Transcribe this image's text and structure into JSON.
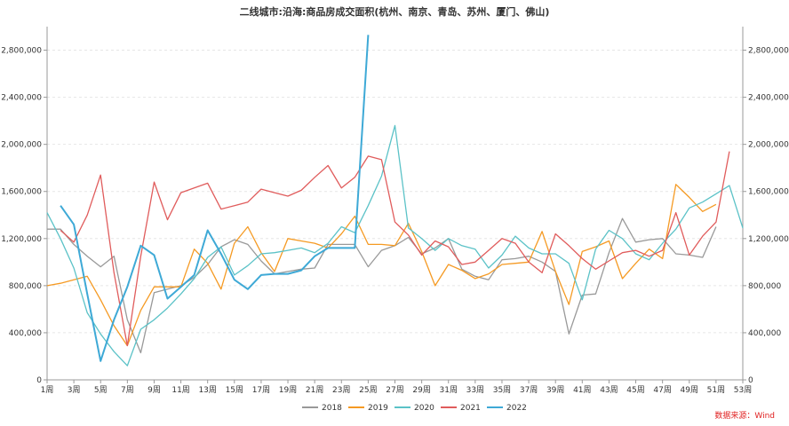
{
  "chart_data": {
    "type": "line",
    "title": "二线城市:沿海:商品房成交面积(杭州、南京、青岛、苏州、厦门、佛山)",
    "source": "数据来源：Wind",
    "x_tick_labels": [
      "1周",
      "3周",
      "5周",
      "7周",
      "9周",
      "11周",
      "13周",
      "15周",
      "17周",
      "19周",
      "21周",
      "23周",
      "25周",
      "27周",
      "29周",
      "31周",
      "33周",
      "35周",
      "37周",
      "39周",
      "41周",
      "43周",
      "45周",
      "47周",
      "49周",
      "51周",
      "53周"
    ],
    "y_tick_labels": [
      "0",
      "400,000",
      "800,000",
      "1,200,000",
      "1,600,000",
      "2,000,000",
      "2,400,000",
      "2,800,000"
    ],
    "x": [
      1,
      2,
      3,
      4,
      5,
      6,
      7,
      8,
      9,
      10,
      11,
      12,
      13,
      14,
      15,
      16,
      17,
      18,
      19,
      20,
      21,
      22,
      23,
      24,
      25,
      26,
      27,
      28,
      29,
      30,
      31,
      32,
      33,
      34,
      35,
      36,
      37,
      38,
      39,
      40,
      41,
      42,
      43,
      44,
      45,
      46,
      47,
      48,
      49,
      50,
      51,
      52,
      53
    ],
    "ylim": [
      0,
      3000000
    ],
    "legend_position": "bottom",
    "series": [
      {
        "name": "2018",
        "color": "#999999",
        "values": [
          1280000,
          1280000,
          1150000,
          1050000,
          960000,
          1050000,
          510000,
          230000,
          740000,
          770000,
          800000,
          870000,
          980000,
          1130000,
          1190000,
          1150000,
          1010000,
          900000,
          920000,
          940000,
          950000,
          1150000,
          1150000,
          1150000,
          960000,
          1100000,
          1140000,
          1210000,
          1070000,
          1120000,
          1200000,
          940000,
          880000,
          850000,
          1020000,
          1030000,
          1050000,
          1000000,
          920000,
          390000,
          720000,
          730000,
          1080000,
          1370000,
          1170000,
          1190000,
          1200000,
          1070000,
          1060000,
          1040000,
          1300000,
          null,
          null
        ]
      },
      {
        "name": "2019",
        "color": "#f59a23",
        "values": [
          800000,
          820000,
          850000,
          880000,
          680000,
          460000,
          290000,
          590000,
          790000,
          790000,
          790000,
          1110000,
          990000,
          770000,
          1160000,
          1300000,
          1080000,
          920000,
          1200000,
          1180000,
          1160000,
          1120000,
          1240000,
          1390000,
          1150000,
          1150000,
          1140000,
          1330000,
          1090000,
          800000,
          980000,
          930000,
          860000,
          900000,
          980000,
          990000,
          1000000,
          1260000,
          920000,
          640000,
          1090000,
          1130000,
          1180000,
          860000,
          990000,
          1110000,
          1030000,
          1660000,
          1550000,
          1430000,
          1490000,
          null,
          null
        ]
      },
      {
        "name": "2020",
        "color": "#5bc2c7",
        "values": [
          1420000,
          1200000,
          950000,
          570000,
          390000,
          240000,
          120000,
          430000,
          510000,
          610000,
          730000,
          860000,
          1040000,
          1130000,
          890000,
          970000,
          1070000,
          1080000,
          1100000,
          1120000,
          1080000,
          1160000,
          1300000,
          1250000,
          1480000,
          1730000,
          2160000,
          1290000,
          1200000,
          1100000,
          1200000,
          1140000,
          1110000,
          950000,
          1060000,
          1220000,
          1120000,
          1070000,
          1070000,
          990000,
          680000,
          1110000,
          1270000,
          1200000,
          1070000,
          1020000,
          1160000,
          1280000,
          1460000,
          1510000,
          1580000,
          1650000,
          1290000
        ]
      },
      {
        "name": "2021",
        "color": "#e05c5c",
        "values": [
          null,
          1270000,
          1170000,
          1400000,
          1740000,
          910000,
          290000,
          1050000,
          1680000,
          1360000,
          1590000,
          1630000,
          1670000,
          1450000,
          1480000,
          1510000,
          1620000,
          1590000,
          1560000,
          1610000,
          1720000,
          1820000,
          1630000,
          1720000,
          1900000,
          1870000,
          1340000,
          1230000,
          1060000,
          1180000,
          1130000,
          980000,
          1000000,
          1100000,
          1200000,
          1160000,
          1000000,
          910000,
          1240000,
          1140000,
          1030000,
          940000,
          1010000,
          1080000,
          1100000,
          1050000,
          1100000,
          1420000,
          1060000,
          1220000,
          1340000,
          1940000,
          null
        ]
      },
      {
        "name": "2022",
        "color": "#3ea9d6",
        "values": [
          null,
          1480000,
          1320000,
          730000,
          160000,
          510000,
          790000,
          1140000,
          1060000,
          690000,
          790000,
          890000,
          1270000,
          1070000,
          850000,
          770000,
          890000,
          900000,
          900000,
          930000,
          1050000,
          1120000,
          1120000,
          1120000,
          2930000,
          null,
          null,
          null,
          null,
          null,
          null,
          null,
          null,
          null,
          null,
          null,
          null,
          null,
          null,
          null,
          null,
          null,
          null,
          null,
          null,
          null,
          null,
          null,
          null,
          null,
          null,
          null,
          null
        ]
      }
    ]
  }
}
